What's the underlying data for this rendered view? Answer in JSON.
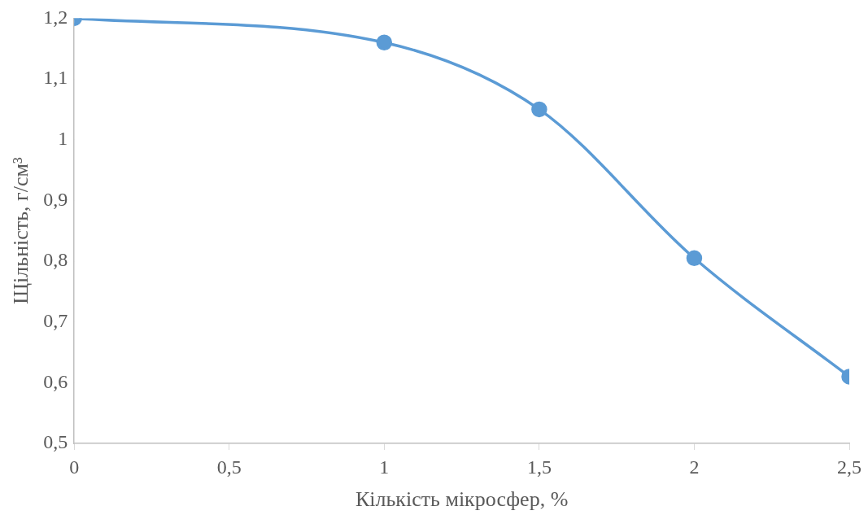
{
  "chart_data": {
    "type": "line",
    "xlabel": "Кількість мікросфер, %",
    "ylabel": "Щільність, г/см³",
    "x": [
      0,
      1,
      1.5,
      2,
      2.5
    ],
    "series": [
      {
        "color": "#5b9bd5",
        "values": [
          1.2,
          1.16,
          1.05,
          0.805,
          0.61
        ]
      }
    ],
    "xlim": [
      0,
      2.5
    ],
    "xticks": [
      0,
      {
        "value": 0.5,
        "label": "0,5"
      },
      1,
      {
        "value": 1.5,
        "label": "1,5"
      },
      2,
      {
        "value": 2.5,
        "label": "2,5"
      }
    ],
    "ylim": [
      0.5,
      1.2
    ],
    "yticks": [
      {
        "value": 0.5,
        "label": "0,5"
      },
      {
        "value": 0.6,
        "label": "0,6"
      },
      {
        "value": 0.7,
        "label": "0,7"
      },
      {
        "value": 0.8,
        "label": "0,8"
      },
      {
        "value": 0.9,
        "label": "0,9"
      },
      1,
      {
        "value": 1.1,
        "label": "1,1"
      },
      {
        "value": 1.2,
        "label": "1,2"
      }
    ],
    "grid": false,
    "legend": false,
    "marker": "circle",
    "line_style": "solid"
  }
}
